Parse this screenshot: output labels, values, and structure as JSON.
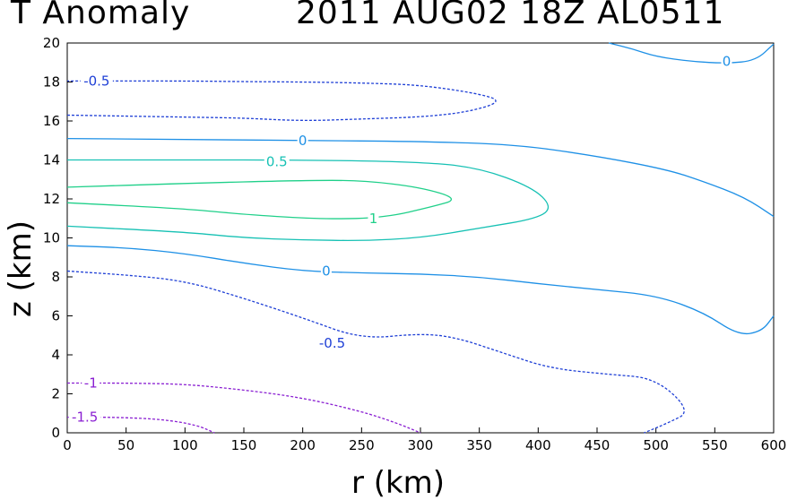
{
  "header": {
    "title_left": "T Anomaly",
    "title_right": "2011 AUG02 18Z  AL0511"
  },
  "chart_data": {
    "type": "contour",
    "title": "T Anomaly",
    "subtitle": "2011 AUG02 18Z  AL0511",
    "xlabel": "r (km)",
    "ylabel": "z (km)",
    "xlim": [
      0,
      600
    ],
    "ylim": [
      0,
      20
    ],
    "xticks": [
      0,
      50,
      100,
      150,
      200,
      250,
      300,
      350,
      400,
      450,
      500,
      550,
      600
    ],
    "yticks": [
      0,
      2,
      4,
      6,
      8,
      10,
      12,
      14,
      16,
      18,
      20
    ],
    "grid": false,
    "contours": [
      {
        "id": "upper-neg-0p5",
        "level": -0.5,
        "label": "-0.5",
        "color": "#1e3fd6",
        "dashed": true,
        "points": [
          [
            0,
            16.3
          ],
          [
            50,
            16.25
          ],
          [
            100,
            16.2
          ],
          [
            150,
            16.15
          ],
          [
            200,
            16.0
          ],
          [
            250,
            16.1
          ],
          [
            300,
            16.2
          ],
          [
            340,
            16.45
          ],
          [
            370,
            17.0
          ],
          [
            350,
            17.4
          ],
          [
            300,
            17.85
          ],
          [
            250,
            17.95
          ],
          [
            200,
            18.0
          ],
          [
            150,
            18.02
          ],
          [
            100,
            18.05
          ],
          [
            50,
            18.05
          ],
          [
            0,
            18.05
          ]
        ],
        "label_at": [
          25,
          18.05
        ]
      },
      {
        "id": "top-right-0",
        "level": 0,
        "label": "0",
        "color": "#1e90e6",
        "dashed": false,
        "points": [
          [
            460,
            20.0
          ],
          [
            480,
            19.7
          ],
          [
            500,
            19.3
          ],
          [
            530,
            19.05
          ],
          [
            560,
            18.95
          ],
          [
            585,
            19.1
          ],
          [
            600,
            19.95
          ]
        ],
        "label_at": [
          560,
          19.05
        ]
      },
      {
        "id": "upper-0",
        "level": 0,
        "label": "0",
        "color": "#1e90e6",
        "dashed": false,
        "points": [
          [
            0,
            15.1
          ],
          [
            100,
            15.05
          ],
          [
            200,
            15.0
          ],
          [
            300,
            14.95
          ],
          [
            380,
            14.8
          ],
          [
            450,
            14.2
          ],
          [
            510,
            13.5
          ],
          [
            540,
            12.9
          ],
          [
            575,
            12.1
          ],
          [
            600,
            11.1
          ]
        ],
        "label_at": [
          200,
          15.0
        ]
      },
      {
        "id": "0p5",
        "level": 0.5,
        "label": "0.5",
        "color": "#17c1b4",
        "dashed": false,
        "points": [
          [
            0,
            14.0
          ],
          [
            100,
            14.0
          ],
          [
            200,
            14.0
          ],
          [
            300,
            13.9
          ],
          [
            350,
            13.6
          ],
          [
            395,
            12.6
          ],
          [
            412,
            11.6
          ],
          [
            400,
            11.0
          ],
          [
            350,
            10.5
          ],
          [
            300,
            10.0
          ],
          [
            250,
            9.85
          ],
          [
            200,
            9.9
          ],
          [
            150,
            10.0
          ],
          [
            100,
            10.3
          ],
          [
            0,
            10.6
          ]
        ],
        "label_at": [
          178,
          13.9
        ]
      },
      {
        "id": "1",
        "level": 1,
        "label": "1",
        "color": "#20d08a",
        "dashed": false,
        "points": [
          [
            0,
            12.6
          ],
          [
            100,
            12.8
          ],
          [
            200,
            12.95
          ],
          [
            250,
            12.95
          ],
          [
            300,
            12.6
          ],
          [
            333,
            12.0
          ],
          [
            310,
            11.6
          ],
          [
            270,
            11.05
          ],
          [
            220,
            10.95
          ],
          [
            150,
            11.2
          ],
          [
            100,
            11.5
          ],
          [
            0,
            11.8
          ]
        ],
        "label_at": [
          260,
          11.0
        ]
      },
      {
        "id": "lower-0",
        "level": 0,
        "label": "0",
        "color": "#1e90e6",
        "dashed": false,
        "points": [
          [
            0,
            9.6
          ],
          [
            50,
            9.5
          ],
          [
            100,
            9.2
          ],
          [
            150,
            8.7
          ],
          [
            200,
            8.3
          ],
          [
            250,
            8.2
          ],
          [
            300,
            8.15
          ],
          [
            350,
            8.0
          ],
          [
            400,
            7.65
          ],
          [
            450,
            7.35
          ],
          [
            500,
            7.05
          ],
          [
            540,
            6.2
          ],
          [
            570,
            5.0
          ],
          [
            590,
            5.2
          ],
          [
            600,
            6.0
          ]
        ],
        "label_at": [
          220,
          8.3
        ]
      },
      {
        "id": "lower-neg-0p5",
        "level": -0.5,
        "label": "-0.5",
        "color": "#1e3fd6",
        "dashed": true,
        "points": [
          [
            0,
            8.3
          ],
          [
            50,
            8.1
          ],
          [
            100,
            7.8
          ],
          [
            150,
            6.9
          ],
          [
            200,
            5.9
          ],
          [
            250,
            4.8
          ],
          [
            300,
            5.1
          ],
          [
            330,
            4.9
          ],
          [
            370,
            4.1
          ],
          [
            410,
            3.3
          ],
          [
            460,
            3.0
          ],
          [
            500,
            2.8
          ],
          [
            530,
            1.1
          ],
          [
            510,
            0.5
          ],
          [
            490,
            0.0
          ]
        ],
        "label_at": [
          225,
          4.6
        ]
      },
      {
        "id": "neg-1",
        "level": -1,
        "label": "-1",
        "color": "#8a1fd2",
        "dashed": true,
        "points": [
          [
            0,
            2.55
          ],
          [
            50,
            2.55
          ],
          [
            100,
            2.5
          ],
          [
            150,
            2.2
          ],
          [
            200,
            1.8
          ],
          [
            250,
            1.1
          ],
          [
            280,
            0.5
          ],
          [
            300,
            0.0
          ]
        ],
        "label_at": [
          20,
          2.55
        ]
      },
      {
        "id": "neg-1p5",
        "level": -1.5,
        "label": "-1.5",
        "color": "#8a1fd2",
        "dashed": true,
        "points": [
          [
            0,
            0.8
          ],
          [
            40,
            0.8
          ],
          [
            80,
            0.7
          ],
          [
            110,
            0.4
          ],
          [
            125,
            0.0
          ]
        ],
        "label_at": [
          15,
          0.8
        ]
      }
    ]
  }
}
